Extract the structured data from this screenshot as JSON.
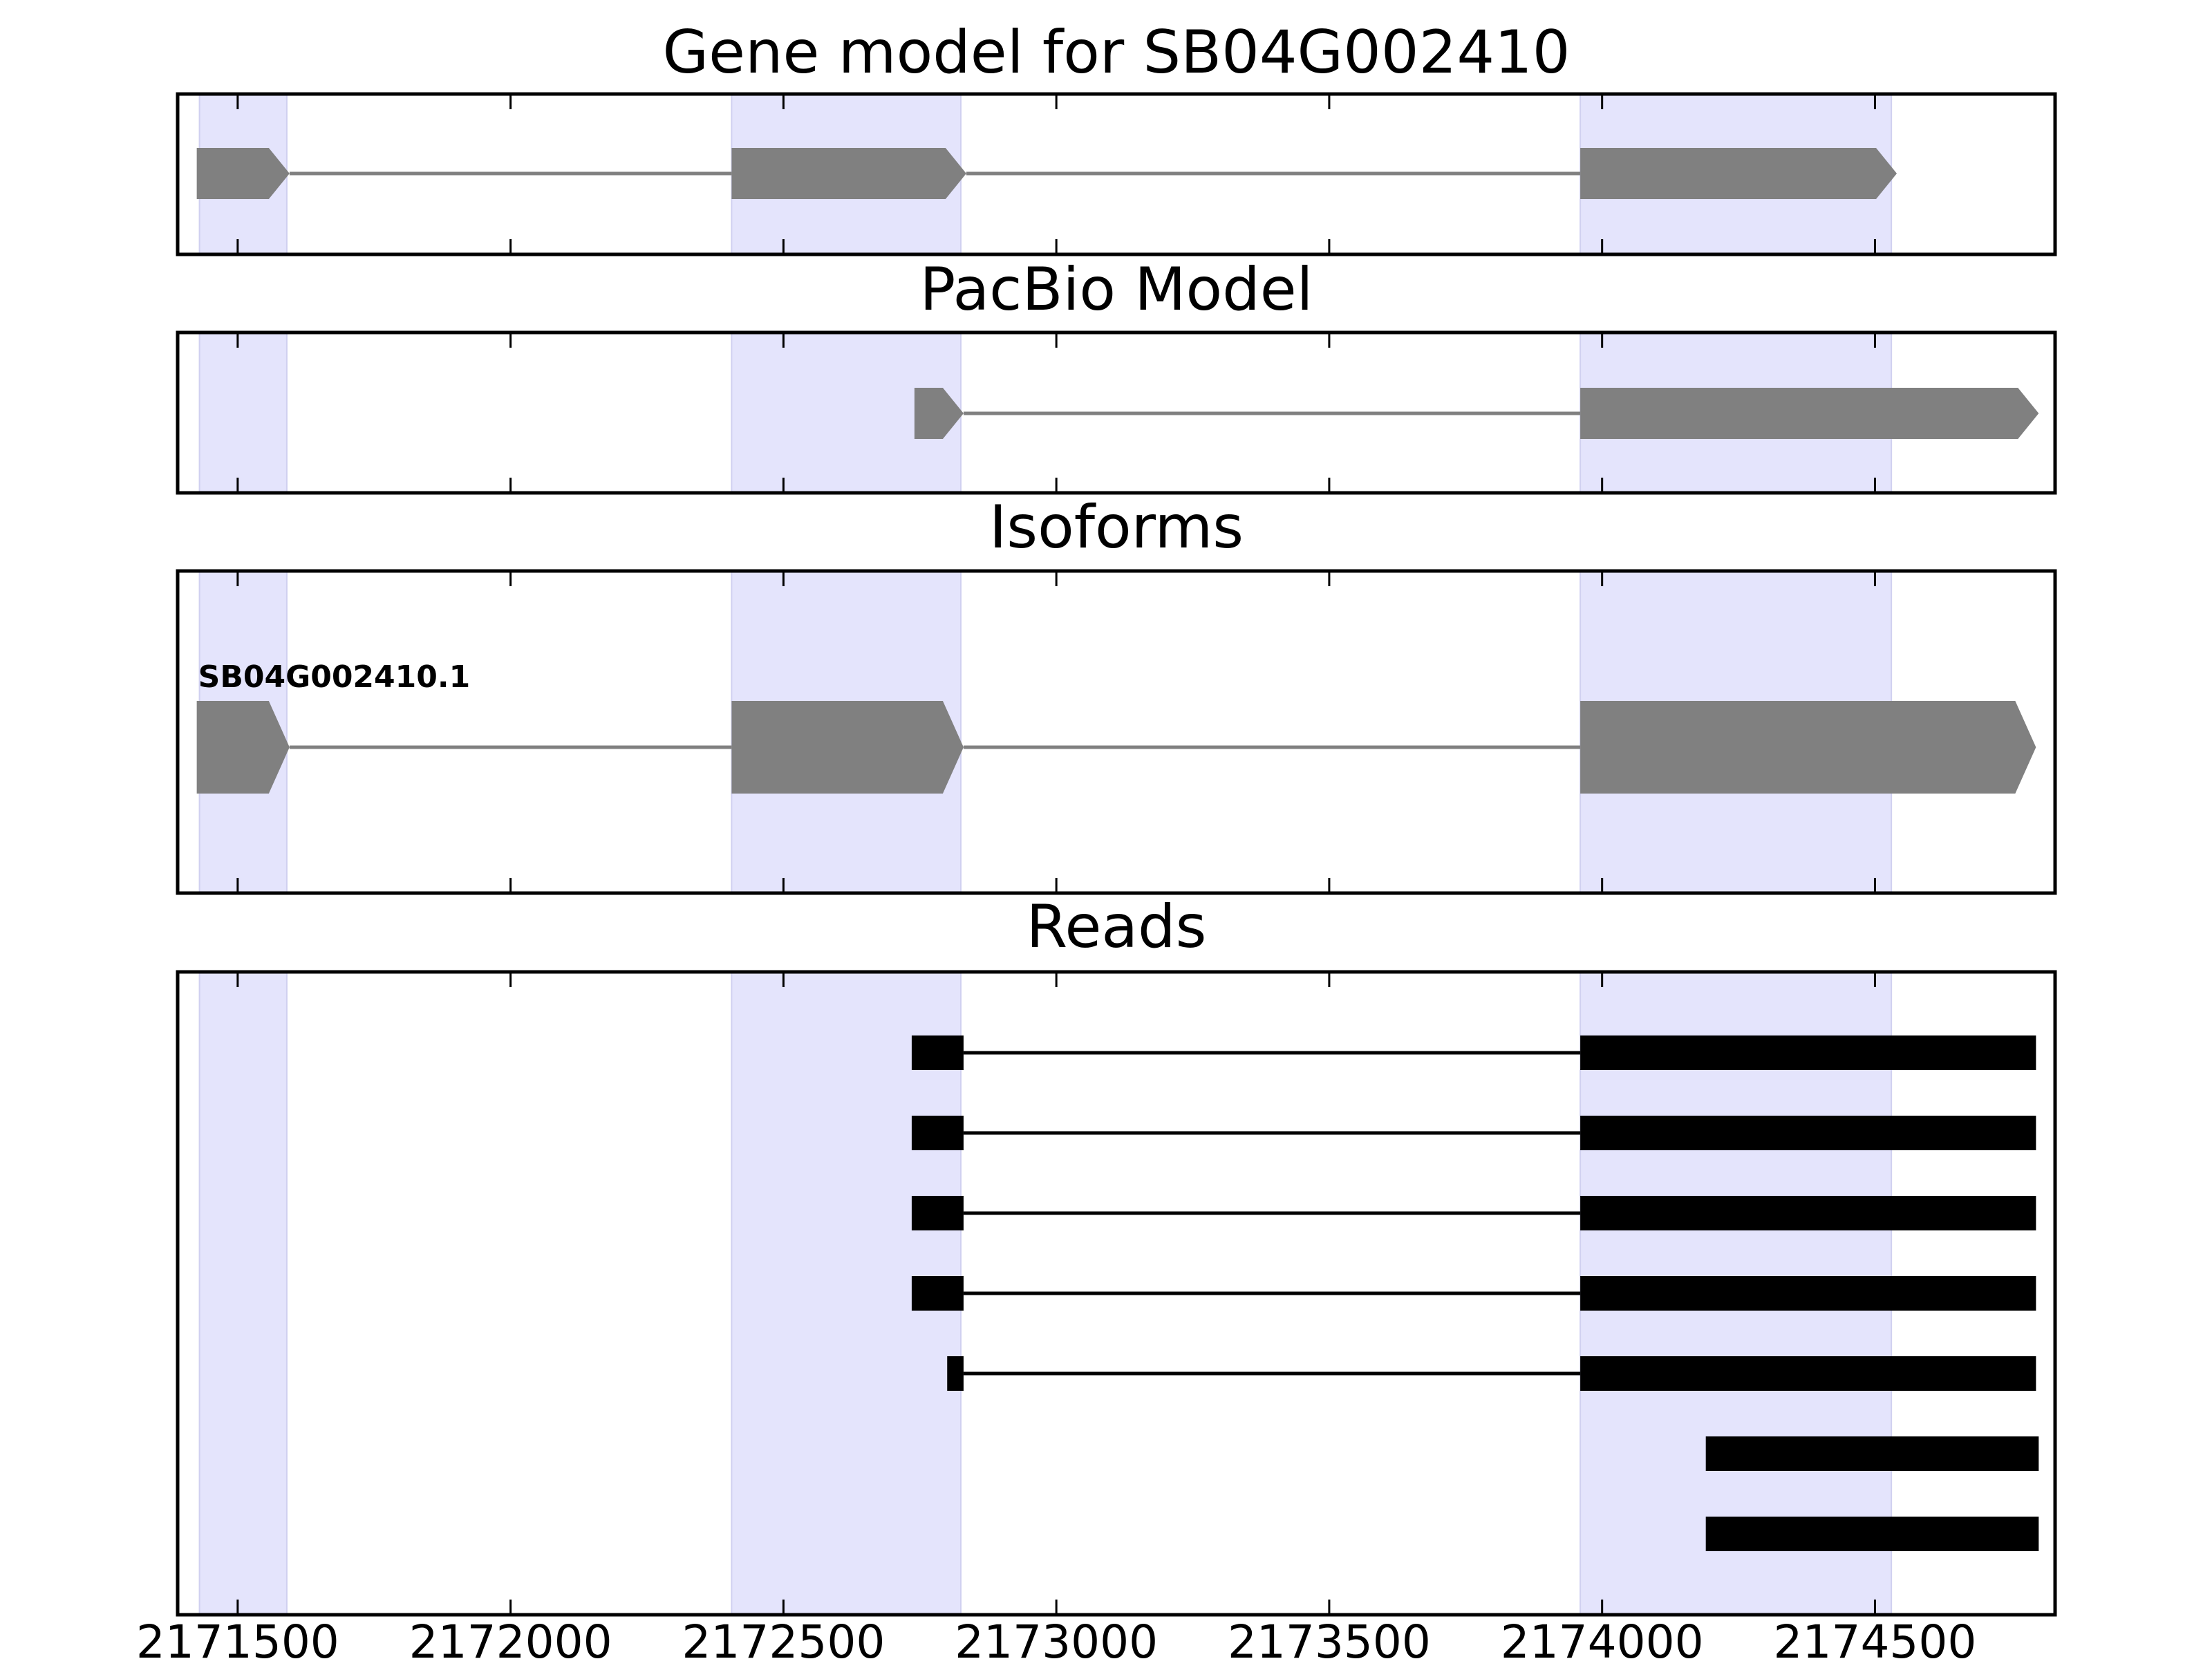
{
  "chart_data": {
    "type": "gene-track",
    "x_ticks": [
      2171500,
      2172000,
      2172500,
      2173000,
      2173500,
      2174000,
      2174500
    ],
    "x_tick_labels": [
      "2171500",
      "2172000",
      "2172500",
      "2173000",
      "2173500",
      "2174000",
      "2174500"
    ],
    "xlim": [
      2171390,
      2174830
    ],
    "highlight_regions": [
      [
        2171430,
        2171590
      ],
      [
        2172405,
        2172825
      ],
      [
        2173960,
        2174530
      ]
    ],
    "colors": {
      "highlight": "#e4e4fc",
      "model": "#808080",
      "read": "#000000",
      "frame": "#000000"
    },
    "panels": [
      {
        "title": "Gene model for SB04G002410",
        "strand": "+",
        "transcripts": [
          {
            "label": "",
            "exons": [
              [
                2171425,
                2171595
              ],
              [
                2172405,
                2172835
              ],
              [
                2173960,
                2174540
              ]
            ]
          }
        ]
      },
      {
        "title": "PacBio Model",
        "strand": "+",
        "transcripts": [
          {
            "label": "",
            "exons": [
              [
                2172740,
                2172830
              ],
              [
                2173960,
                2174800
              ]
            ]
          }
        ]
      },
      {
        "title": "Isoforms",
        "strand": "+",
        "transcripts": [
          {
            "label": "SB04G002410.1",
            "exons": [
              [
                2171425,
                2171595
              ],
              [
                2172405,
                2172830
              ],
              [
                2173960,
                2174795
              ]
            ]
          }
        ]
      },
      {
        "title": "Reads",
        "reads": [
          {
            "exons": [
              [
                2172735,
                2172830
              ],
              [
                2173960,
                2174795
              ]
            ]
          },
          {
            "exons": [
              [
                2172735,
                2172830
              ],
              [
                2173960,
                2174795
              ]
            ]
          },
          {
            "exons": [
              [
                2172735,
                2172830
              ],
              [
                2173960,
                2174795
              ]
            ]
          },
          {
            "exons": [
              [
                2172735,
                2172830
              ],
              [
                2173960,
                2174795
              ]
            ]
          },
          {
            "exons": [
              [
                2172800,
                2172830
              ],
              [
                2173960,
                2174795
              ]
            ]
          },
          {
            "exons": [
              [
                2174190,
                2174800
              ]
            ]
          },
          {
            "exons": [
              [
                2174190,
                2174800
              ]
            ]
          }
        ]
      }
    ]
  }
}
